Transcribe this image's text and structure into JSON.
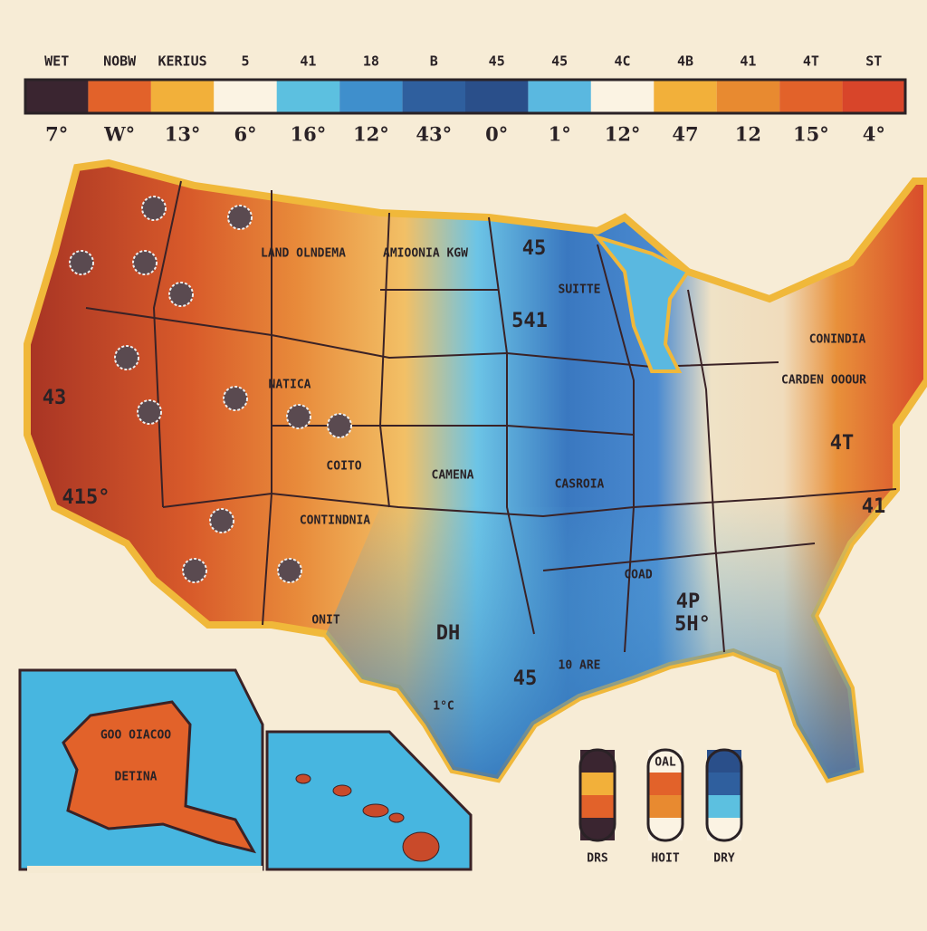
{
  "legend": [
    {
      "top": "WET",
      "bottom": "7°",
      "color": "#3a2530"
    },
    {
      "top": "NOBW",
      "bottom": "W°",
      "color": "#e2622a"
    },
    {
      "top": "KERIUS",
      "bottom": "13°",
      "color": "#f2b03a"
    },
    {
      "top": "5",
      "bottom": "6°",
      "color": "#fbf3e3"
    },
    {
      "top": "41",
      "bottom": "16°",
      "color": "#5cc0e0"
    },
    {
      "top": "18",
      "bottom": "12°",
      "color": "#3f8fcc"
    },
    {
      "top": "B",
      "bottom": "43°",
      "color": "#2f5f9e"
    },
    {
      "top": "45",
      "bottom": "0°",
      "color": "#2a4f8a"
    },
    {
      "top": "45",
      "bottom": "1°",
      "color": "#5ab8e0"
    },
    {
      "top": "4C",
      "bottom": "12°",
      "color": "#fbf3e3"
    },
    {
      "top": "4B",
      "bottom": "47",
      "color": "#f2b03a"
    },
    {
      "top": "41",
      "bottom": "12",
      "color": "#e88a30"
    },
    {
      "top": "4T",
      "bottom": "15°",
      "color": "#e2622a"
    },
    {
      "top": "ST",
      "bottom": "4°",
      "color": "#d8452a"
    }
  ],
  "map_labels": [
    "LAND OLNDEMA",
    "AMIOONIA KGW",
    "SUITTE",
    "541",
    "43",
    "415°",
    "45",
    "NATICA",
    "COITO",
    "CAMENA",
    "CASROIA",
    "CONTINDNIA",
    "DH",
    "45",
    "1°C",
    "10 ARE",
    "5H°",
    "4P",
    "CARDEN OOOUR",
    "COAD",
    "41",
    "4T",
    "CONINDIA",
    "ONIT"
  ],
  "alaska_label": [
    "GOO OIACOO",
    "DETINA"
  ],
  "key": [
    {
      "label": "DRS"
    },
    {
      "label": "HOIT",
      "note": "OAL"
    },
    {
      "label": "DRY"
    }
  ]
}
